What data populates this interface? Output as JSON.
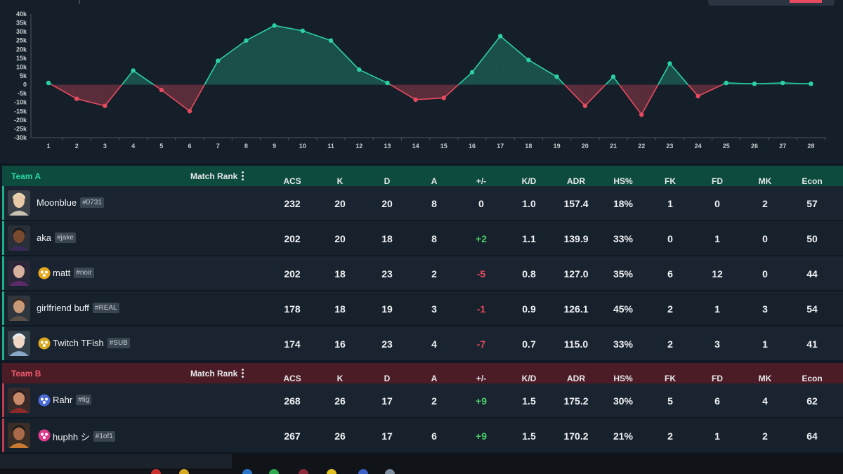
{
  "chart_data": {
    "type": "area",
    "title": "",
    "x": [
      1,
      2,
      3,
      4,
      5,
      6,
      7,
      8,
      9,
      10,
      11,
      12,
      13,
      14,
      15,
      16,
      17,
      18,
      19,
      20,
      21,
      22,
      23,
      24,
      25,
      26,
      27,
      28
    ],
    "y": [
      1000,
      -8000,
      -12000,
      8000,
      -3000,
      -15000,
      13500,
      25000,
      33500,
      30500,
      25000,
      8500,
      1000,
      -8500,
      -7500,
      7000,
      27500,
      14000,
      4500,
      -12000,
      4500,
      -17000,
      12000,
      -6500,
      1000,
      500,
      1000,
      500
    ],
    "y_tick_labels": [
      "40k",
      "35k",
      "30k",
      "25k",
      "20k",
      "15k",
      "10k",
      "5k",
      "0",
      "-5k",
      "-10k",
      "-15k",
      "-20k",
      "-25k",
      "-30k"
    ],
    "ylim": [
      -30000,
      40000
    ],
    "positive_color": "#2bd1a3",
    "negative_color": "#e84a5f"
  },
  "colors": {
    "team_a": "#28d6a8",
    "team_b": "#f25a6c",
    "positive": "#4ccd6a",
    "negative": "#e84a5f"
  },
  "columns": [
    "ACS",
    "K",
    "D",
    "A",
    "+/-",
    "K/D",
    "ADR",
    "HS%",
    "FK",
    "FD",
    "MK",
    "Econ"
  ],
  "match_rank_label": "Match Rank",
  "team_a": {
    "name": "Team A",
    "players": [
      {
        "name": "Moonblue",
        "tag": "#0731",
        "has_rank": false,
        "avatar": "agent-avatar-blonde",
        "stats": [
          "232",
          "20",
          "20",
          "8",
          "0",
          "1.0",
          "157.4",
          "18%",
          "1",
          "0",
          "2",
          "57"
        ]
      },
      {
        "name": "aka",
        "tag": "#jake",
        "has_rank": false,
        "avatar": "agent-avatar-dark",
        "stats": [
          "202",
          "20",
          "18",
          "8",
          "+2",
          "1.1",
          "139.9",
          "33%",
          "0",
          "1",
          "0",
          "50"
        ]
      },
      {
        "name": "matt",
        "tag": "#noir",
        "has_rank": true,
        "avatar": "agent-avatar-purple",
        "stats": [
          "202",
          "18",
          "23",
          "2",
          "-5",
          "0.8",
          "127.0",
          "35%",
          "6",
          "12",
          "0",
          "44"
        ]
      },
      {
        "name": "girlfriend buff",
        "tag": "#REAL",
        "has_rank": false,
        "avatar": "agent-avatar-brown",
        "stats": [
          "178",
          "18",
          "19",
          "3",
          "-1",
          "0.9",
          "126.1",
          "45%",
          "2",
          "1",
          "3",
          "54"
        ]
      },
      {
        "name": "Twitch TFish",
        "tag": "#SUB",
        "has_rank": true,
        "avatar": "agent-avatar-white",
        "stats": [
          "174",
          "16",
          "23",
          "4",
          "-7",
          "0.7",
          "115.0",
          "33%",
          "2",
          "3",
          "1",
          "41"
        ]
      }
    ]
  },
  "team_b": {
    "name": "Team B",
    "players": [
      {
        "name": "Rahr",
        "tag": "#tig",
        "has_rank": true,
        "avatar": "agent-avatar-red",
        "stats": [
          "268",
          "26",
          "17",
          "2",
          "+9",
          "1.5",
          "175.2",
          "30%",
          "5",
          "6",
          "4",
          "62"
        ]
      },
      {
        "name": "huphh シ",
        "tag": "#1of1",
        "has_rank": true,
        "avatar": "agent-avatar-orange",
        "stats": [
          "267",
          "26",
          "17",
          "6",
          "+9",
          "1.5",
          "170.2",
          "21%",
          "2",
          "1",
          "2",
          "64"
        ]
      }
    ]
  }
}
